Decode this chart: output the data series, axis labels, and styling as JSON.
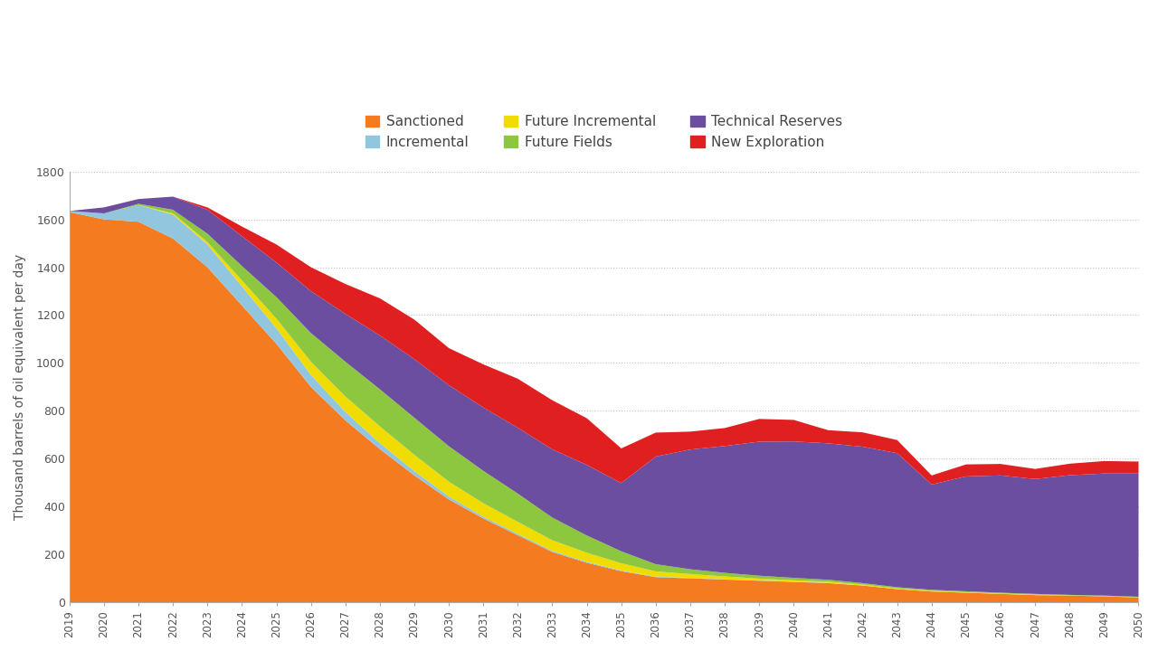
{
  "years": [
    2019,
    2020,
    2021,
    2022,
    2023,
    2024,
    2025,
    2026,
    2027,
    2028,
    2029,
    2030,
    2031,
    2032,
    2033,
    2034,
    2035,
    2036,
    2037,
    2038,
    2039,
    2040,
    2041,
    2042,
    2043,
    2044,
    2045,
    2046,
    2047,
    2048,
    2049,
    2050
  ],
  "sanctioned": [
    1630,
    1600,
    1590,
    1520,
    1400,
    1240,
    1080,
    900,
    760,
    640,
    530,
    430,
    350,
    280,
    210,
    165,
    130,
    105,
    100,
    95,
    90,
    85,
    80,
    70,
    55,
    45,
    40,
    35,
    30,
    28,
    25,
    20
  ],
  "incremental": [
    5,
    25,
    70,
    100,
    95,
    80,
    65,
    50,
    35,
    25,
    18,
    12,
    8,
    6,
    5,
    4,
    3,
    2,
    2,
    1,
    1,
    1,
    1,
    0,
    0,
    0,
    0,
    0,
    0,
    0,
    0,
    0
  ],
  "future_incremental": [
    0,
    0,
    0,
    5,
    10,
    25,
    40,
    55,
    65,
    70,
    68,
    62,
    56,
    50,
    44,
    38,
    30,
    22,
    16,
    12,
    8,
    6,
    5,
    4,
    3,
    3,
    2,
    2,
    2,
    1,
    1,
    1
  ],
  "future_fields": [
    0,
    0,
    5,
    15,
    35,
    60,
    90,
    120,
    145,
    155,
    155,
    148,
    135,
    118,
    95,
    72,
    50,
    30,
    20,
    15,
    12,
    10,
    8,
    6,
    5,
    4,
    4,
    3,
    3,
    2,
    2,
    2
  ],
  "technical_reserves": [
    0,
    25,
    20,
    55,
    100,
    125,
    145,
    175,
    200,
    225,
    245,
    255,
    265,
    275,
    285,
    295,
    285,
    450,
    500,
    530,
    560,
    570,
    570,
    570,
    560,
    440,
    480,
    490,
    480,
    500,
    510,
    515
  ],
  "new_exploration": [
    0,
    0,
    0,
    0,
    10,
    40,
    75,
    100,
    125,
    155,
    165,
    155,
    180,
    205,
    205,
    195,
    145,
    100,
    75,
    75,
    95,
    90,
    55,
    60,
    55,
    38,
    50,
    48,
    42,
    48,
    52,
    50
  ],
  "colors": {
    "sanctioned": "#F47B20",
    "incremental": "#92C5DE",
    "future_incremental": "#F0DC00",
    "future_fields": "#8DC63F",
    "technical_reserves": "#6B4EA0",
    "new_exploration": "#E02020"
  },
  "ylabel": "Thousand barrels of oil equivalent per day",
  "ylim": [
    0,
    1800
  ],
  "yticks": [
    0,
    200,
    400,
    600,
    800,
    1000,
    1200,
    1400,
    1600,
    1800
  ],
  "legend_order": [
    "Sanctioned",
    "Incremental",
    "Future Incremental",
    "Future Fields",
    "Technical Reserves",
    "New Exploration"
  ],
  "background_color": "#FFFFFF",
  "grid_color": "#BBBBBB"
}
